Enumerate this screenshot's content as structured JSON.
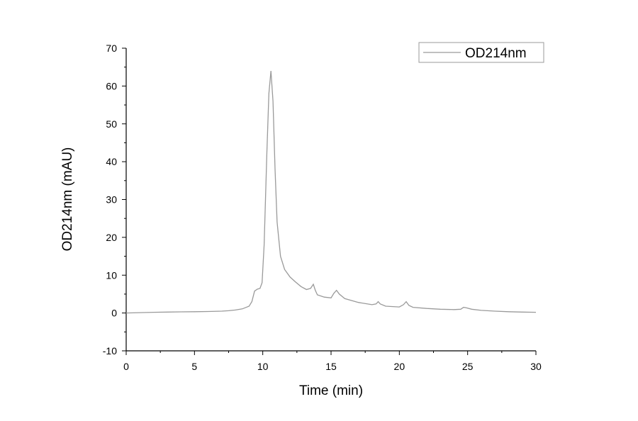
{
  "chart_data": {
    "type": "line",
    "xlabel": "Time (min)",
    "ylabel": "OD214nm (mAU)",
    "xlim": [
      0,
      30
    ],
    "ylim": [
      -10,
      70
    ],
    "xticks": [
      0,
      5,
      10,
      15,
      20,
      25,
      30
    ],
    "yticks": [
      -10,
      0,
      10,
      20,
      30,
      40,
      50,
      60,
      70
    ],
    "grid": false,
    "legend_position": "top-right",
    "series": [
      {
        "name": "OD214nm",
        "color": "#9a9a9a",
        "points": [
          [
            0,
            0
          ],
          [
            1,
            0.1
          ],
          [
            2,
            0.2
          ],
          [
            3,
            0.25
          ],
          [
            4,
            0.3
          ],
          [
            5,
            0.35
          ],
          [
            6,
            0.4
          ],
          [
            7,
            0.5
          ],
          [
            7.5,
            0.6
          ],
          [
            8,
            0.8
          ],
          [
            8.5,
            1.1
          ],
          [
            9,
            1.8
          ],
          [
            9.2,
            3.0
          ],
          [
            9.4,
            5.8
          ],
          [
            9.6,
            6.3
          ],
          [
            9.8,
            6.5
          ],
          [
            9.95,
            8.0
          ],
          [
            10.1,
            18.0
          ],
          [
            10.3,
            42.0
          ],
          [
            10.45,
            58.0
          ],
          [
            10.6,
            64.0
          ],
          [
            10.75,
            56.0
          ],
          [
            10.9,
            38.0
          ],
          [
            11.05,
            24.0
          ],
          [
            11.3,
            15.0
          ],
          [
            11.6,
            11.5
          ],
          [
            12.0,
            9.5
          ],
          [
            12.4,
            8.2
          ],
          [
            12.8,
            7.0
          ],
          [
            13.2,
            6.2
          ],
          [
            13.5,
            6.5
          ],
          [
            13.7,
            7.6
          ],
          [
            13.85,
            6.0
          ],
          [
            14.0,
            4.8
          ],
          [
            14.5,
            4.2
          ],
          [
            15.0,
            4.0
          ],
          [
            15.2,
            5.2
          ],
          [
            15.4,
            6.0
          ],
          [
            15.6,
            5.0
          ],
          [
            16.0,
            3.8
          ],
          [
            17.0,
            2.8
          ],
          [
            18.0,
            2.2
          ],
          [
            18.3,
            2.4
          ],
          [
            18.45,
            3.0
          ],
          [
            18.6,
            2.4
          ],
          [
            19.0,
            1.8
          ],
          [
            20.0,
            1.6
          ],
          [
            20.3,
            2.2
          ],
          [
            20.5,
            3.0
          ],
          [
            20.7,
            2.0
          ],
          [
            21.0,
            1.5
          ],
          [
            22.0,
            1.2
          ],
          [
            23.0,
            1.0
          ],
          [
            24.0,
            0.9
          ],
          [
            24.5,
            1.0
          ],
          [
            24.7,
            1.5
          ],
          [
            24.9,
            1.4
          ],
          [
            25.3,
            1.0
          ],
          [
            26.0,
            0.7
          ],
          [
            27.0,
            0.5
          ],
          [
            28.0,
            0.35
          ],
          [
            29.0,
            0.25
          ],
          [
            30.0,
            0.2
          ]
        ]
      }
    ]
  }
}
